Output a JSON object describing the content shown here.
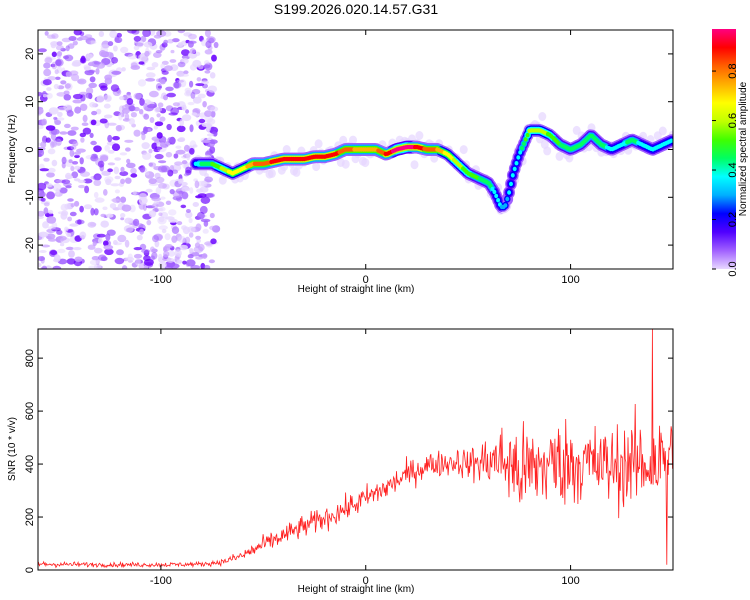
{
  "title": "S199.2026.020.14.57.G31",
  "chart_data": [
    {
      "type": "heatmap",
      "name": "spectrogram",
      "xlabel": "Height of straight line (km)",
      "ylabel": "Frequency (Hz)",
      "xlim": [
        -160,
        150
      ],
      "ylim": [
        -25,
        25
      ],
      "xticks": [
        -100,
        0,
        100
      ],
      "yticks": [
        -20,
        -10,
        0,
        10,
        20
      ],
      "noise_region_x": [
        -160,
        -75
      ],
      "ridge": {
        "x": [
          -83,
          -75,
          -70,
          -65,
          -60,
          -55,
          -50,
          -45,
          -40,
          -35,
          -30,
          -25,
          -20,
          -15,
          -10,
          -5,
          0,
          5,
          10,
          15,
          20,
          25,
          30,
          35,
          40,
          45,
          50,
          55,
          60,
          63,
          66,
          68,
          70,
          72,
          75,
          78,
          80,
          85,
          90,
          95,
          100,
          105,
          110,
          115,
          120,
          125,
          130,
          135,
          140,
          145,
          150
        ],
        "y": [
          -3,
          -3,
          -4,
          -5,
          -4,
          -3,
          -3,
          -2.5,
          -2,
          -2,
          -2,
          -1.5,
          -1.5,
          -1,
          0,
          0,
          0,
          0,
          -1,
          0,
          0.5,
          0.5,
          0,
          0,
          -1,
          -3,
          -5,
          -6,
          -7,
          -9,
          -12,
          -12,
          -9,
          -5,
          -1,
          2,
          4,
          4,
          3,
          1,
          0,
          1,
          3,
          1,
          0,
          1,
          2,
          1,
          0,
          1,
          2
        ],
        "amplitude": [
          0.4,
          0.5,
          0.6,
          0.7,
          0.7,
          0.8,
          0.85,
          0.9,
          0.9,
          0.9,
          0.9,
          0.9,
          0.95,
          0.9,
          0.85,
          0.8,
          0.8,
          0.8,
          0.9,
          1.0,
          1.0,
          0.95,
          0.85,
          0.8,
          0.7,
          0.6,
          0.55,
          0.5,
          0.45,
          0.4,
          0.35,
          0.3,
          0.35,
          0.35,
          0.4,
          0.5,
          0.6,
          0.65,
          0.55,
          0.5,
          0.45,
          0.45,
          0.5,
          0.45,
          0.4,
          0.4,
          0.45,
          0.4,
          0.35,
          0.35,
          0.4
        ]
      }
    },
    {
      "type": "colorbar",
      "name": "amplitude-colorbar",
      "label": "Normalized spectral amplitude",
      "range": [
        0,
        0.97
      ],
      "ticks": [
        0.0,
        0.2,
        0.4,
        0.6,
        0.8
      ],
      "tick_labels": [
        "0.0",
        "0.2",
        "0.4",
        "0.6",
        "0.8"
      ],
      "colors": [
        "#e8d8ff",
        "#a060ff",
        "#5000ff",
        "#0000ff",
        "#00b0ff",
        "#00ffff",
        "#00ff60",
        "#40ff00",
        "#c0ff00",
        "#ffff00",
        "#ffb000",
        "#ff6000",
        "#ff0000",
        "#ff0080"
      ]
    },
    {
      "type": "line",
      "name": "snr-plot",
      "xlabel": "Height of straight line (km)",
      "ylabel": "SNR (10 * v/v)",
      "xlim": [
        -160,
        150
      ],
      "ylim": [
        0,
        910
      ],
      "xticks": [
        -100,
        0,
        100
      ],
      "yticks": [
        0,
        200,
        400,
        600,
        800
      ],
      "color": "#ff2020",
      "envelope": {
        "x": [
          -160,
          -130,
          -100,
          -80,
          -70,
          -60,
          -50,
          -40,
          -30,
          -20,
          -10,
          0,
          10,
          20,
          30,
          40,
          45,
          50,
          55,
          60,
          65,
          70,
          75,
          80,
          90,
          100,
          110,
          120,
          130,
          140,
          150
        ],
        "mean": [
          22,
          20,
          20,
          22,
          30,
          55,
          95,
          130,
          165,
          195,
          230,
          270,
          310,
          360,
          395,
          405,
          410,
          400,
          405,
          410,
          420,
          400,
          370,
          380,
          400,
          410,
          400,
          390,
          400,
          400,
          430
        ],
        "spread": [
          10,
          8,
          8,
          8,
          10,
          20,
          30,
          35,
          40,
          40,
          40,
          45,
          45,
          45,
          45,
          45,
          50,
          55,
          70,
          90,
          110,
          150,
          160,
          150,
          150,
          150,
          140,
          140,
          150,
          160,
          160
        ]
      },
      "peak": {
        "x": 140,
        "y": 910
      },
      "trough": {
        "x": 147,
        "y": 20
      }
    }
  ]
}
